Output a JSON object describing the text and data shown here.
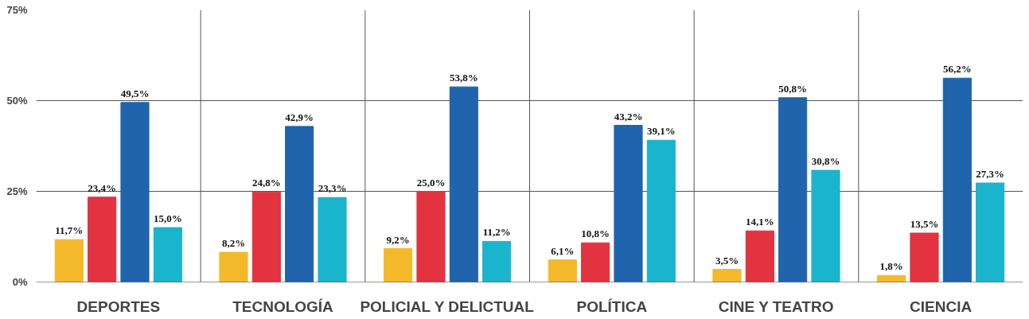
{
  "chart_data": {
    "type": "bar",
    "categories": [
      "DEPORTES",
      "TECNOLOGÍA",
      "POLICIAL Y DELICTUAL",
      "POLÍTICA",
      "CINE Y TEATRO",
      "CIENCIA"
    ],
    "series": [
      {
        "color": "#f4b92a",
        "values": [
          11.7,
          8.2,
          9.2,
          6.1,
          3.5,
          1.8
        ],
        "value_labels": [
          "11,7%",
          "8,2%",
          "9,2%",
          "6,1%",
          "3,5%",
          "1,8%"
        ]
      },
      {
        "color": "#e33240",
        "values": [
          23.4,
          24.8,
          25.0,
          10.8,
          14.1,
          13.5
        ],
        "value_labels": [
          "23,4%",
          "24,8%",
          "25,0%",
          "10,8%",
          "14,1%",
          "13,5%"
        ]
      },
      {
        "color": "#1f64ad",
        "values": [
          49.5,
          42.9,
          53.8,
          43.2,
          50.8,
          56.2
        ],
        "value_labels": [
          "49,5%",
          "42,9%",
          "53,8%",
          "43,2%",
          "50,8%",
          "56,2%"
        ]
      },
      {
        "color": "#1ab4cc",
        "values": [
          15.0,
          23.3,
          11.2,
          39.1,
          30.8,
          27.3
        ],
        "value_labels": [
          "15,0%",
          "23,3%",
          "11,2%",
          "39,1%",
          "30,8%",
          "27,3%"
        ]
      }
    ],
    "ylim": [
      0,
      75
    ],
    "yticks": [
      {
        "value": 0,
        "label": "0%"
      },
      {
        "value": 25,
        "label": "25%"
      },
      {
        "value": 50,
        "label": "50%"
      },
      {
        "value": 75,
        "label": "75%"
      }
    ],
    "grid": true
  }
}
